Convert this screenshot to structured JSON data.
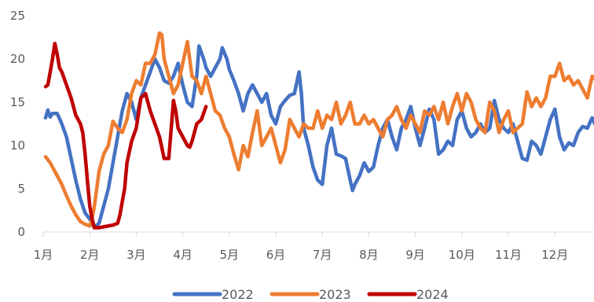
{
  "chart_data": {
    "type": "line",
    "title": "",
    "xlabel": "",
    "ylabel": "",
    "ylim": [
      0,
      25
    ],
    "yticks": [
      0,
      5,
      10,
      15,
      20,
      25
    ],
    "xlim": [
      1,
      12.9
    ],
    "categories": [
      "1月",
      "2月",
      "3月",
      "4月",
      "5月",
      "6月",
      "7月",
      "8月",
      "9月",
      "10月",
      "11月",
      "12月"
    ],
    "grid": false,
    "legend_position": "bottom",
    "series": [
      {
        "name": "2022",
        "color": "#4472C4",
        "points": [
          [
            1.05,
            13.2
          ],
          [
            1.1,
            14.1
          ],
          [
            1.15,
            13.3
          ],
          [
            1.2,
            13.7
          ],
          [
            1.3,
            13.7
          ],
          [
            1.4,
            12.5
          ],
          [
            1.5,
            11
          ],
          [
            1.6,
            8.5
          ],
          [
            1.7,
            6
          ],
          [
            1.8,
            3.8
          ],
          [
            1.9,
            2.2
          ],
          [
            2.0,
            1.5
          ],
          [
            2.1,
            0.5
          ],
          [
            2.2,
            1.0
          ],
          [
            2.3,
            3
          ],
          [
            2.4,
            5
          ],
          [
            2.5,
            8
          ],
          [
            2.6,
            11
          ],
          [
            2.7,
            14
          ],
          [
            2.8,
            16
          ],
          [
            2.9,
            15
          ],
          [
            3.0,
            13
          ],
          [
            3.1,
            15.5
          ],
          [
            3.2,
            17
          ],
          [
            3.3,
            18.5
          ],
          [
            3.4,
            20
          ],
          [
            3.5,
            19
          ],
          [
            3.6,
            17.5
          ],
          [
            3.7,
            17.2
          ],
          [
            3.8,
            18
          ],
          [
            3.9,
            19.5
          ],
          [
            4.0,
            17
          ],
          [
            4.1,
            15
          ],
          [
            4.2,
            14.5
          ],
          [
            4.3,
            18
          ],
          [
            4.35,
            21.5
          ],
          [
            4.45,
            20
          ],
          [
            4.5,
            19
          ],
          [
            4.6,
            18
          ],
          [
            4.7,
            19
          ],
          [
            4.8,
            20
          ],
          [
            4.85,
            21.3
          ],
          [
            4.95,
            20
          ],
          [
            5.0,
            18.8
          ],
          [
            5.1,
            17.5
          ],
          [
            5.2,
            16
          ],
          [
            5.25,
            15
          ],
          [
            5.3,
            14
          ],
          [
            5.4,
            16
          ],
          [
            5.5,
            17
          ],
          [
            5.6,
            16
          ],
          [
            5.7,
            15
          ],
          [
            5.8,
            16
          ],
          [
            5.9,
            13.5
          ],
          [
            6.0,
            12.5
          ],
          [
            6.1,
            14.5
          ],
          [
            6.2,
            15.2
          ],
          [
            6.3,
            15.8
          ],
          [
            6.4,
            16
          ],
          [
            6.5,
            18.5
          ],
          [
            6.55,
            16
          ],
          [
            6.6,
            12
          ],
          [
            6.7,
            10
          ],
          [
            6.8,
            7.5
          ],
          [
            6.9,
            6
          ],
          [
            7.0,
            5.5
          ],
          [
            7.1,
            10
          ],
          [
            7.2,
            12
          ],
          [
            7.3,
            9
          ],
          [
            7.4,
            8.8
          ],
          [
            7.5,
            8.5
          ],
          [
            7.6,
            6
          ],
          [
            7.65,
            4.8
          ],
          [
            7.7,
            5.5
          ],
          [
            7.8,
            6.5
          ],
          [
            7.9,
            8
          ],
          [
            8.0,
            7
          ],
          [
            8.1,
            7.5
          ],
          [
            8.2,
            10
          ],
          [
            8.3,
            12
          ],
          [
            8.4,
            13
          ],
          [
            8.5,
            11
          ],
          [
            8.6,
            9.5
          ],
          [
            8.7,
            12
          ],
          [
            8.8,
            13
          ],
          [
            8.9,
            14.5
          ],
          [
            9.0,
            12
          ],
          [
            9.1,
            10
          ],
          [
            9.2,
            12
          ],
          [
            9.3,
            14.2
          ],
          [
            9.4,
            13
          ],
          [
            9.5,
            9
          ],
          [
            9.6,
            9.5
          ],
          [
            9.7,
            10.5
          ],
          [
            9.8,
            10
          ],
          [
            9.9,
            13
          ],
          [
            10.0,
            14
          ],
          [
            10.1,
            12
          ],
          [
            10.2,
            11
          ],
          [
            10.3,
            11.5
          ],
          [
            10.4,
            12.5
          ],
          [
            10.5,
            11.5
          ],
          [
            10.6,
            12
          ],
          [
            10.7,
            15.2
          ],
          [
            10.8,
            13
          ],
          [
            10.9,
            12
          ],
          [
            11.0,
            11.5
          ],
          [
            11.1,
            12.5
          ],
          [
            11.2,
            10.5
          ],
          [
            11.3,
            8.5
          ],
          [
            11.4,
            8.3
          ],
          [
            11.5,
            10.5
          ],
          [
            11.6,
            10
          ],
          [
            11.7,
            9
          ],
          [
            11.8,
            11
          ],
          [
            11.9,
            13
          ],
          [
            12.0,
            14.2
          ],
          [
            12.1,
            11
          ],
          [
            12.2,
            9.5
          ],
          [
            12.3,
            10.3
          ],
          [
            12.4,
            10
          ],
          [
            12.5,
            11.5
          ],
          [
            12.6,
            12.2
          ],
          [
            12.7,
            12
          ],
          [
            12.8,
            13.2
          ],
          [
            12.9,
            12
          ],
          [
            13.0,
            10
          ],
          [
            13.15,
            8.5
          ]
        ]
      },
      {
        "name": "2023",
        "color": "#ED7D31",
        "points": [
          [
            1.05,
            8.7
          ],
          [
            1.15,
            8
          ],
          [
            1.2,
            7.5
          ],
          [
            1.3,
            6.5
          ],
          [
            1.4,
            5.5
          ],
          [
            1.5,
            4.2
          ],
          [
            1.6,
            3
          ],
          [
            1.7,
            2
          ],
          [
            1.8,
            1.2
          ],
          [
            1.9,
            0.9
          ],
          [
            2.0,
            0.7
          ],
          [
            2.05,
            1.5
          ],
          [
            2.1,
            3
          ],
          [
            2.15,
            5
          ],
          [
            2.2,
            7
          ],
          [
            2.3,
            9
          ],
          [
            2.4,
            10
          ],
          [
            2.5,
            12.8
          ],
          [
            2.6,
            12
          ],
          [
            2.7,
            11.5
          ],
          [
            2.8,
            13
          ],
          [
            2.9,
            16
          ],
          [
            3.0,
            17.5
          ],
          [
            3.1,
            17
          ],
          [
            3.2,
            19.5
          ],
          [
            3.3,
            19.5
          ],
          [
            3.4,
            20.5
          ],
          [
            3.5,
            23
          ],
          [
            3.55,
            22.8
          ],
          [
            3.6,
            20
          ],
          [
            3.7,
            18
          ],
          [
            3.8,
            16
          ],
          [
            3.9,
            17
          ],
          [
            4.0,
            19.5
          ],
          [
            4.1,
            22
          ],
          [
            4.2,
            18
          ],
          [
            4.3,
            17.5
          ],
          [
            4.4,
            16
          ],
          [
            4.5,
            18
          ],
          [
            4.6,
            16
          ],
          [
            4.7,
            14
          ],
          [
            4.8,
            13.5
          ],
          [
            4.9,
            12
          ],
          [
            5.0,
            11
          ],
          [
            5.1,
            9
          ],
          [
            5.2,
            7.2
          ],
          [
            5.3,
            10
          ],
          [
            5.4,
            8.7
          ],
          [
            5.5,
            11.5
          ],
          [
            5.6,
            14
          ],
          [
            5.7,
            10
          ],
          [
            5.8,
            11
          ],
          [
            5.9,
            12
          ],
          [
            6.0,
            10
          ],
          [
            6.1,
            8
          ],
          [
            6.2,
            9.5
          ],
          [
            6.3,
            13
          ],
          [
            6.4,
            12
          ],
          [
            6.5,
            11
          ],
          [
            6.6,
            12.5
          ],
          [
            6.7,
            12
          ],
          [
            6.8,
            12
          ],
          [
            6.9,
            14
          ],
          [
            7.0,
            12
          ],
          [
            7.1,
            13.5
          ],
          [
            7.2,
            13
          ],
          [
            7.3,
            15
          ],
          [
            7.4,
            12.5
          ],
          [
            7.5,
            13.5
          ],
          [
            7.6,
            15
          ],
          [
            7.7,
            12.5
          ],
          [
            7.8,
            12.5
          ],
          [
            7.9,
            13.5
          ],
          [
            8.0,
            12.5
          ],
          [
            8.1,
            13
          ],
          [
            8.2,
            12
          ],
          [
            8.3,
            11
          ],
          [
            8.4,
            13
          ],
          [
            8.5,
            13.5
          ],
          [
            8.6,
            14.5
          ],
          [
            8.7,
            13
          ],
          [
            8.8,
            12
          ],
          [
            8.9,
            13.5
          ],
          [
            9.0,
            12.5
          ],
          [
            9.1,
            11.5
          ],
          [
            9.2,
            14
          ],
          [
            9.3,
            13.5
          ],
          [
            9.4,
            14.5
          ],
          [
            9.5,
            13
          ],
          [
            9.6,
            15
          ],
          [
            9.7,
            12.5
          ],
          [
            9.8,
            14.5
          ],
          [
            9.9,
            16
          ],
          [
            10.0,
            14
          ],
          [
            10.1,
            16
          ],
          [
            10.2,
            15
          ],
          [
            10.3,
            13
          ],
          [
            10.4,
            12
          ],
          [
            10.5,
            11.5
          ],
          [
            10.6,
            15
          ],
          [
            10.7,
            14
          ],
          [
            10.8,
            11.5
          ],
          [
            10.9,
            13
          ],
          [
            11.0,
            14
          ],
          [
            11.1,
            11.5
          ],
          [
            11.2,
            12
          ],
          [
            11.3,
            12.5
          ],
          [
            11.4,
            16.2
          ],
          [
            11.5,
            14.5
          ],
          [
            11.6,
            15.5
          ],
          [
            11.7,
            14.5
          ],
          [
            11.8,
            15.5
          ],
          [
            11.9,
            18
          ],
          [
            12.0,
            18
          ],
          [
            12.1,
            19.5
          ],
          [
            12.2,
            17.5
          ],
          [
            12.3,
            18
          ],
          [
            12.4,
            17
          ],
          [
            12.5,
            17.5
          ],
          [
            12.6,
            16.5
          ],
          [
            12.7,
            15.5
          ],
          [
            12.8,
            18
          ],
          [
            12.9,
            17.5
          ],
          [
            13.0,
            18.2
          ],
          [
            13.15,
            18.5
          ]
        ]
      },
      {
        "name": "2024",
        "color": "#C00000",
        "points": [
          [
            1.05,
            16.8
          ],
          [
            1.1,
            17
          ],
          [
            1.15,
            18.5
          ],
          [
            1.2,
            20
          ],
          [
            1.25,
            21.8
          ],
          [
            1.3,
            20.5
          ],
          [
            1.35,
            19
          ],
          [
            1.4,
            18.5
          ],
          [
            1.5,
            17
          ],
          [
            1.6,
            15.5
          ],
          [
            1.7,
            13.5
          ],
          [
            1.8,
            12.5
          ],
          [
            1.85,
            11.5
          ],
          [
            1.9,
            9
          ],
          [
            1.95,
            6
          ],
          [
            2.0,
            3
          ],
          [
            2.05,
            1.5
          ],
          [
            2.1,
            0.5
          ],
          [
            2.2,
            0.5
          ],
          [
            2.3,
            0.6
          ],
          [
            2.5,
            0.8
          ],
          [
            2.6,
            1.0
          ],
          [
            2.65,
            2
          ],
          [
            2.7,
            3.5
          ],
          [
            2.75,
            5
          ],
          [
            2.8,
            8
          ],
          [
            2.9,
            10.5
          ],
          [
            3.0,
            12
          ],
          [
            3.1,
            15.5
          ],
          [
            3.2,
            16
          ],
          [
            3.25,
            15
          ],
          [
            3.3,
            14
          ],
          [
            3.4,
            12.5
          ],
          [
            3.5,
            11
          ],
          [
            3.6,
            8.5
          ],
          [
            3.7,
            8.5
          ],
          [
            3.8,
            15.2
          ],
          [
            3.85,
            14
          ],
          [
            3.9,
            12
          ],
          [
            4.0,
            11
          ],
          [
            4.1,
            10
          ],
          [
            4.15,
            9.8
          ],
          [
            4.2,
            10.5
          ],
          [
            4.3,
            12.5
          ],
          [
            4.4,
            13
          ],
          [
            4.5,
            14.5
          ]
        ]
      }
    ]
  },
  "legend": {
    "items": [
      {
        "label": "2022",
        "color": "#4472C4"
      },
      {
        "label": "2023",
        "color": "#ED7D31"
      },
      {
        "label": "2024",
        "color": "#C00000"
      }
    ]
  }
}
